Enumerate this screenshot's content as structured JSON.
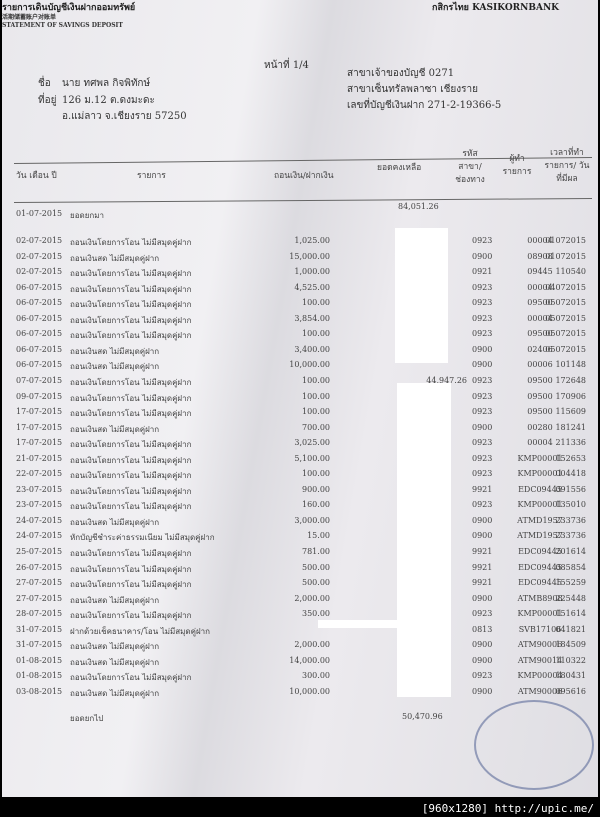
{
  "header": {
    "title_th": "รายการเดินบัญชีเงินฝากออมทรัพย์",
    "title_cn": "活期储蓄账户对账单",
    "title_en": "STATEMENT OF SAVINGS DEPOSIT",
    "bank": "กสิกรไทย KASIKORNBANK",
    "page": "หน้าที่ 1/4"
  },
  "customer": {
    "name_label": "ชื่อ",
    "name": "นาย ทศพล กิจพิทักษ์",
    "address_label": "ที่อยู่",
    "address_1": "126 ม.12 ต.ดงมะดะ",
    "address_2": "อ.แม่ลาว จ.เชียงราย 57250"
  },
  "account": {
    "branch_owner": "สาขาเจ้าของบัญชี 0271",
    "branch_name": "สาขาเซ็นทรัลพลาซา เชียงราย",
    "account_no": "เลขที่บัญชีเงินฝาก 271-2-19366-5"
  },
  "columns": [
    "วัน เดือน ปี",
    "รายการ",
    "ถอนเงิน/ฝากเงิน",
    "ยอดคงเหลือ",
    "รหัส สาขา/ ช่องทาง",
    "ผู้ทำ รายการ",
    "เวลาที่ทำ รายการ/ วันที่มีผล"
  ],
  "opening": {
    "date": "01-07-2015",
    "label": "ยอดยกมา",
    "balance": "84,051.26"
  },
  "rows": [
    [
      "02-07-2015",
      "ถอนเงินโดยการโอน ไม่มีสมุดคู่ฝาก",
      "1,025.00",
      "",
      "0923",
      "00004",
      "01072015"
    ],
    [
      "02-07-2015",
      "ถอนเงินสด ไม่มีสมุดคู่ฝาก",
      "15,000.00",
      "",
      "0900",
      "08908",
      "01072015"
    ],
    [
      "02-07-2015",
      "ถอนเงินโดยการโอน ไม่มีสมุดคู่ฝาก",
      "1,000.00",
      "",
      "0921",
      "09445",
      "110540"
    ],
    [
      "06-07-2015",
      "ถอนเงินโดยการโอน ไม่มีสมุดคู่ฝาก",
      "4,525.00",
      "",
      "0923",
      "00004",
      "04072015"
    ],
    [
      "06-07-2015",
      "ถอนเงินโดยการโอน ไม่มีสมุดคู่ฝาก",
      "100.00",
      "",
      "0923",
      "09500",
      "05072015"
    ],
    [
      "06-07-2015",
      "ถอนเงินโดยการโอน ไม่มีสมุดคู่ฝาก",
      "3,854.00",
      "",
      "0923",
      "00004",
      "05072015"
    ],
    [
      "06-07-2015",
      "ถอนเงินโดยการโอน ไม่มีสมุดคู่ฝาก",
      "100.00",
      "",
      "0923",
      "09500",
      "05072015"
    ],
    [
      "06-07-2015",
      "ถอนเงินสด ไม่มีสมุดคู่ฝาก",
      "3,400.00",
      "",
      "0900",
      "02406",
      "05072015"
    ],
    [
      "06-07-2015",
      "ถอนเงินสด ไม่มีสมุดคู่ฝาก",
      "10,000.00",
      "",
      "0900",
      "00006",
      "101148"
    ],
    [
      "07-07-2015",
      "ถอนเงินโดยการโอน ไม่มีสมุดคู่ฝาก",
      "100.00",
      "44,947.26",
      "0923",
      "09500",
      "172648"
    ],
    [
      "09-07-2015",
      "ถอนเงินโดยการโอน ไม่มีสมุดคู่ฝาก",
      "100.00",
      "",
      "0923",
      "09500",
      "170906"
    ],
    [
      "17-07-2015",
      "ถอนเงินโดยการโอน ไม่มีสมุดคู่ฝาก",
      "100.00",
      "",
      "0923",
      "09500",
      "115609"
    ],
    [
      "17-07-2015",
      "ถอนเงินสด ไม่มีสมุดคู่ฝาก",
      "700.00",
      "",
      "0900",
      "00280",
      "181241"
    ],
    [
      "17-07-2015",
      "ถอนเงินโดยการโอน ไม่มีสมุดคู่ฝาก",
      "3,025.00",
      "",
      "0923",
      "00004",
      "211336"
    ],
    [
      "21-07-2015",
      "ถอนเงินโดยการโอน ไม่มีสมุดคู่ฝาก",
      "5,100.00",
      "",
      "0923",
      "KMP00001",
      "152653"
    ],
    [
      "22-07-2015",
      "ถอนเงินโดยการโอน ไม่มีสมุดคู่ฝาก",
      "100.00",
      "",
      "0923",
      "KMP00001",
      "004418"
    ],
    [
      "23-07-2015",
      "ถอนเงินโดยการโอน ไม่มีสมุดคู่ฝาก",
      "900.00",
      "",
      "9921",
      "EDC09445",
      "091556"
    ],
    [
      "23-07-2015",
      "ถอนเงินโดยการโอน ไม่มีสมุดคู่ฝาก",
      "160.00",
      "",
      "0923",
      "KMP00001",
      "135010"
    ],
    [
      "24-07-2015",
      "ถอนเงินสด ไม่มีสมุดคู่ฝาก",
      "3,000.00",
      "",
      "0900",
      "ATMD1957",
      "233736"
    ],
    [
      "24-07-2015",
      "หักบัญชีชำระค่าธรรมเนียม ไม่มีสมุดคู่ฝาก",
      "15.00",
      "",
      "0900",
      "ATMD1957",
      "233736"
    ],
    [
      "25-07-2015",
      "ถอนเงินโดยการโอน ไม่มีสมุดคู่ฝาก",
      "781.00",
      "",
      "9921",
      "EDC09445",
      "201614"
    ],
    [
      "26-07-2015",
      "ถอนเงินโดยการโอน ไม่มีสมุดคู่ฝาก",
      "500.00",
      "",
      "9921",
      "EDC09445",
      "085854"
    ],
    [
      "27-07-2015",
      "ถอนเงินโดยการโอน ไม่มีสมุดคู่ฝาก",
      "500.00",
      "",
      "9921",
      "EDC09445",
      "155259"
    ],
    [
      "27-07-2015",
      "ถอนเงินสด ไม่มีสมุดคู่ฝาก",
      "2,000.00",
      "",
      "0900",
      "ATMB8908",
      "225448"
    ],
    [
      "28-07-2015",
      "ถอนเงินโดยการโอน ไม่มีสมุดคู่ฝาก",
      "350.00",
      "",
      "0923",
      "KMP00001",
      "151614"
    ],
    [
      "31-07-2015",
      "ฝากด้วยเช็คธนาคาร/โอน ไม่มีสมุดคู่ฝาก",
      "",
      "",
      "0813",
      "SVB17106",
      "041821"
    ],
    [
      "31-07-2015",
      "ถอนเงินสด ไม่มีสมุดคู่ฝาก",
      "2,000.00",
      "",
      "0900",
      "ATM90006",
      "184509"
    ],
    [
      "01-08-2015",
      "ถอนเงินสด ไม่มีสมุดคู่ฝาก",
      "14,000.00",
      "",
      "0900",
      "ATM90014",
      "110322"
    ],
    [
      "01-08-2015",
      "ถอนเงินโดยการโอน ไม่มีสมุดคู่ฝาก",
      "300.00",
      "",
      "0923",
      "KMP00004",
      "180431"
    ],
    [
      "03-08-2015",
      "ถอนเงินสด ไม่มีสมุดคู่ฝาก",
      "10,000.00",
      "",
      "0900",
      "ATM90006",
      "095616"
    ]
  ],
  "closing": {
    "label": "ยอดยกไป",
    "balance": "50,470.96"
  },
  "watermark": "[960x1280] http://upic.me/"
}
